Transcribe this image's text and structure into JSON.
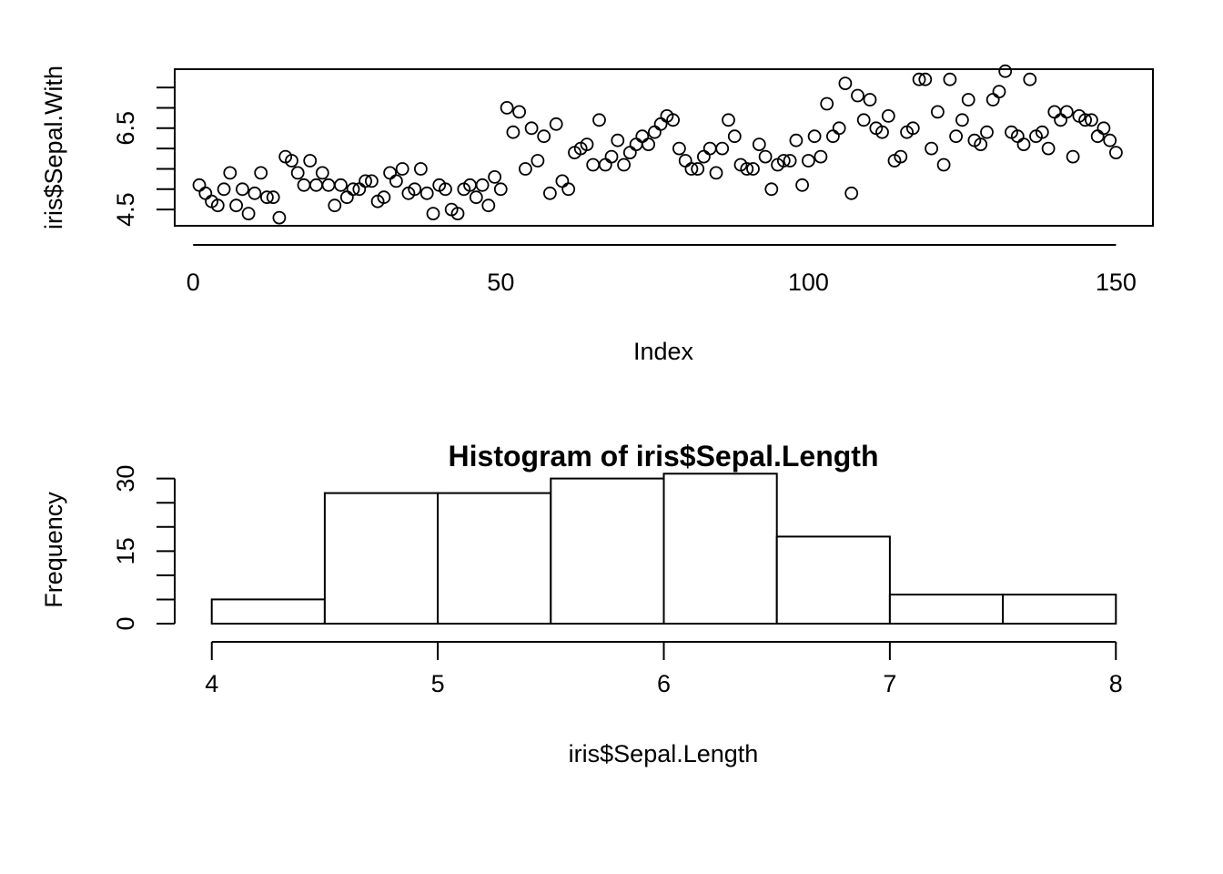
{
  "chart_data": [
    {
      "type": "scatter",
      "title": "",
      "xlabel": "Index",
      "ylabel": "iris$Sepal.With",
      "xlim": [
        -3,
        156
      ],
      "ylim": [
        4.1,
        7.95
      ],
      "x_ticks": [
        0,
        50,
        100,
        150
      ],
      "y_ticks": [
        4.5,
        6.5
      ],
      "y_minor_ticks": [
        4.5,
        5.0,
        5.5,
        6.0,
        6.5,
        7.0,
        7.5,
        8.0
      ],
      "grid": false,
      "x": [
        1,
        2,
        3,
        4,
        5,
        6,
        7,
        8,
        9,
        10,
        11,
        12,
        13,
        14,
        15,
        16,
        17,
        18,
        19,
        20,
        21,
        22,
        23,
        24,
        25,
        26,
        27,
        28,
        29,
        30,
        31,
        32,
        33,
        34,
        35,
        36,
        37,
        38,
        39,
        40,
        41,
        42,
        43,
        44,
        45,
        46,
        47,
        48,
        49,
        50,
        51,
        52,
        53,
        54,
        55,
        56,
        57,
        58,
        59,
        60,
        61,
        62,
        63,
        64,
        65,
        66,
        67,
        68,
        69,
        70,
        71,
        72,
        73,
        74,
        75,
        76,
        77,
        78,
        79,
        80,
        81,
        82,
        83,
        84,
        85,
        86,
        87,
        88,
        89,
        90,
        91,
        92,
        93,
        94,
        95,
        96,
        97,
        98,
        99,
        100,
        101,
        102,
        103,
        104,
        105,
        106,
        107,
        108,
        109,
        110,
        111,
        112,
        113,
        114,
        115,
        116,
        117,
        118,
        119,
        120,
        121,
        122,
        123,
        124,
        125,
        126,
        127,
        128,
        129,
        130,
        131,
        132,
        133,
        134,
        135,
        136,
        137,
        138,
        139,
        140,
        141,
        142,
        143,
        144,
        145,
        146,
        147,
        148,
        149,
        150
      ],
      "values": [
        5.1,
        4.9,
        4.7,
        4.6,
        5.0,
        5.4,
        4.6,
        5.0,
        4.4,
        4.9,
        5.4,
        4.8,
        4.8,
        4.3,
        5.8,
        5.7,
        5.4,
        5.1,
        5.7,
        5.1,
        5.4,
        5.1,
        4.6,
        5.1,
        4.8,
        5.0,
        5.0,
        5.2,
        5.2,
        4.7,
        4.8,
        5.4,
        5.2,
        5.5,
        4.9,
        5.0,
        5.5,
        4.9,
        4.4,
        5.1,
        5.0,
        4.5,
        4.4,
        5.0,
        5.1,
        4.8,
        5.1,
        4.6,
        5.3,
        5.0,
        7.0,
        6.4,
        6.9,
        5.5,
        6.5,
        5.7,
        6.3,
        4.9,
        6.6,
        5.2,
        5.0,
        5.9,
        6.0,
        6.1,
        5.6,
        6.7,
        5.6,
        5.8,
        6.2,
        5.6,
        5.9,
        6.1,
        6.3,
        6.1,
        6.4,
        6.6,
        6.8,
        6.7,
        6.0,
        5.7,
        5.5,
        5.5,
        5.8,
        6.0,
        5.4,
        6.0,
        6.7,
        6.3,
        5.6,
        5.5,
        5.5,
        6.1,
        5.8,
        5.0,
        5.6,
        5.7,
        5.7,
        6.2,
        5.1,
        5.7,
        6.3,
        5.8,
        7.1,
        6.3,
        6.5,
        7.6,
        4.9,
        7.3,
        6.7,
        7.2,
        6.5,
        6.4,
        6.8,
        5.7,
        5.8,
        6.4,
        6.5,
        7.7,
        7.7,
        6.0,
        6.9,
        5.6,
        7.7,
        6.3,
        6.7,
        7.2,
        6.2,
        6.1,
        6.4,
        7.2,
        7.4,
        7.9,
        6.4,
        6.3,
        6.1,
        7.7,
        6.3,
        6.4,
        6.0,
        6.9,
        6.7,
        6.9,
        5.8,
        6.8,
        6.7,
        6.7,
        6.3,
        6.5,
        6.2,
        5.9
      ]
    },
    {
      "type": "bar",
      "title": "Histogram of iris$Sepal.Length",
      "xlabel": "iris$Sepal.Length",
      "ylabel": "Frequency",
      "xlim": [
        3.84,
        8.16
      ],
      "ylim": [
        0,
        32
      ],
      "x_ticks": [
        4,
        5,
        6,
        7,
        8
      ],
      "y_ticks": [
        0,
        15,
        30
      ],
      "y_minor_ticks": [
        0,
        5,
        10,
        15,
        20,
        25,
        30
      ],
      "grid": false,
      "bins": [
        [
          4.0,
          4.5
        ],
        [
          4.5,
          5.0
        ],
        [
          5.0,
          5.5
        ],
        [
          5.5,
          6.0
        ],
        [
          6.0,
          6.5
        ],
        [
          6.5,
          7.0
        ],
        [
          7.0,
          7.5
        ],
        [
          7.5,
          8.0
        ]
      ],
      "values": [
        5,
        27,
        27,
        30,
        31,
        18,
        6,
        6
      ]
    }
  ]
}
